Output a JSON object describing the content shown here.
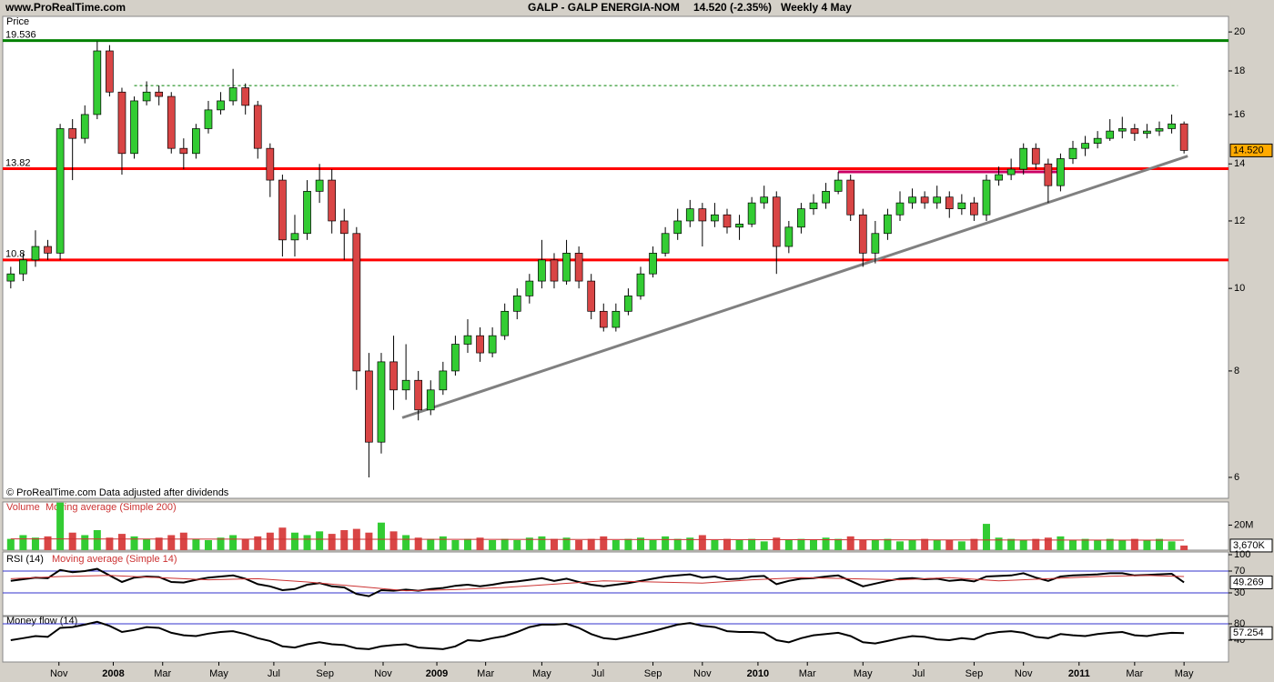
{
  "header": {
    "site": "www.ProRealTime.com",
    "symbol": "GALP - GALP ENERGIA-NOM",
    "quote": "14.520 (-2.35%)",
    "period": "Weekly  4 May"
  },
  "chart_data": [
    {
      "type": "candlestick",
      "title": "Price",
      "note": "© ProRealTime.com  Data adjusted after dividends",
      "log_scale": true,
      "up_color": "#33cc33",
      "down_color": "#d94545",
      "x": [
        0,
        2,
        4,
        6,
        8,
        10,
        12,
        14,
        16,
        18,
        20,
        22,
        24,
        26,
        28,
        30,
        32,
        34,
        36,
        38,
        40,
        42,
        44,
        46,
        48,
        50,
        52,
        54,
        56,
        58,
        60,
        62,
        64,
        66,
        68,
        70,
        72,
        74,
        76,
        78,
        80,
        82,
        84,
        86,
        88,
        90,
        92,
        94,
        96,
        98,
        100,
        102,
        104,
        106,
        108,
        110,
        112,
        114,
        116,
        118,
        120,
        122,
        124,
        126,
        128,
        130,
        132,
        134,
        136,
        138,
        140,
        142,
        144,
        146,
        148,
        150,
        152,
        154,
        156,
        158,
        160,
        162,
        164,
        166,
        168,
        170,
        172,
        174,
        176,
        178,
        180,
        182,
        184,
        186,
        188,
        190
      ],
      "open": [
        10.2,
        10.4,
        10.8,
        11.2,
        11.0,
        15.4,
        15.0,
        16.0,
        19.0,
        17.0,
        14.4,
        16.6,
        17.0,
        16.8,
        14.6,
        14.4,
        15.4,
        16.2,
        16.6,
        17.2,
        16.4,
        14.6,
        13.4,
        11.4,
        11.6,
        13.0,
        13.4,
        12.0,
        11.6,
        8.0,
        6.6,
        8.2,
        7.6,
        7.8,
        7.2,
        7.6,
        8.0,
        8.6,
        8.8,
        8.4,
        8.8,
        9.4,
        9.8,
        10.2,
        10.8,
        10.2,
        11.0,
        10.2,
        9.4,
        9.0,
        9.4,
        9.8,
        10.4,
        11.0,
        11.6,
        12.0,
        12.4,
        12.0,
        12.2,
        11.8,
        11.9,
        12.6,
        12.8,
        11.2,
        11.8,
        12.4,
        12.6,
        13.0,
        13.4,
        12.2,
        11.0,
        11.6,
        12.2,
        12.6,
        12.8,
        12.6,
        12.8,
        12.4,
        12.6,
        12.2,
        13.4,
        13.6,
        13.8,
        14.6,
        14.0,
        13.2,
        14.2,
        14.6,
        14.8,
        15.0,
        15.3,
        15.4,
        15.2,
        15.3,
        15.4,
        15.6
      ],
      "high": [
        10.6,
        11.0,
        11.7,
        11.4,
        15.6,
        15.8,
        16.4,
        19.5,
        19.3,
        17.2,
        16.8,
        17.5,
        17.3,
        17.0,
        15.0,
        15.6,
        16.6,
        17.0,
        18.1,
        17.4,
        16.6,
        14.8,
        13.6,
        12.2,
        13.4,
        14.0,
        13.8,
        12.4,
        11.8,
        8.4,
        8.4,
        8.8,
        8.6,
        8.0,
        7.8,
        8.2,
        8.8,
        9.2,
        9.0,
        9.0,
        9.6,
        10.0,
        10.4,
        11.4,
        11.0,
        11.4,
        11.2,
        10.4,
        9.6,
        9.6,
        10.0,
        10.6,
        11.2,
        11.8,
        12.4,
        12.7,
        12.6,
        12.6,
        12.4,
        12.2,
        12.8,
        13.2,
        13.0,
        12.0,
        12.6,
        12.9,
        13.3,
        13.7,
        13.6,
        12.4,
        12.0,
        12.4,
        13.0,
        13.1,
        13.0,
        13.2,
        13.0,
        12.9,
        12.8,
        13.6,
        13.9,
        14.2,
        14.8,
        14.8,
        14.2,
        14.4,
        14.9,
        15.1,
        15.3,
        15.8,
        15.9,
        15.6,
        15.6,
        15.7,
        16.0,
        15.7
      ],
      "low": [
        10.0,
        10.2,
        10.6,
        10.8,
        10.8,
        13.4,
        14.8,
        15.8,
        16.8,
        13.6,
        14.2,
        16.4,
        16.4,
        14.4,
        13.8,
        14.2,
        15.2,
        16.0,
        16.4,
        16.0,
        14.2,
        12.8,
        10.9,
        10.9,
        11.4,
        12.6,
        11.6,
        10.8,
        7.6,
        6.0,
        6.4,
        7.2,
        7.4,
        7.0,
        7.1,
        7.5,
        7.9,
        8.4,
        8.2,
        8.3,
        8.7,
        9.2,
        9.6,
        10.0,
        10.0,
        10.1,
        10.0,
        9.2,
        8.9,
        8.9,
        9.3,
        9.7,
        10.3,
        10.9,
        11.4,
        11.8,
        11.2,
        11.8,
        11.6,
        11.4,
        11.8,
        12.4,
        10.4,
        11.0,
        11.6,
        12.2,
        12.4,
        12.9,
        12.0,
        10.6,
        10.7,
        11.4,
        12.0,
        12.4,
        12.4,
        12.4,
        12.1,
        12.2,
        12.0,
        12.0,
        13.2,
        13.4,
        13.6,
        13.8,
        12.6,
        13.0,
        14.0,
        14.3,
        14.6,
        14.9,
        15.0,
        14.9,
        15.0,
        15.1,
        15.2,
        14.4
      ],
      "close": [
        10.4,
        10.8,
        11.2,
        11.0,
        15.4,
        15.0,
        16.0,
        19.0,
        17.0,
        14.4,
        16.6,
        17.0,
        16.8,
        14.6,
        14.4,
        15.4,
        16.2,
        16.6,
        17.2,
        16.4,
        14.6,
        13.4,
        11.4,
        11.6,
        13.0,
        13.4,
        12.0,
        11.6,
        8.0,
        6.6,
        8.2,
        7.6,
        7.8,
        7.2,
        7.6,
        8.0,
        8.6,
        8.8,
        8.4,
        8.8,
        9.4,
        9.8,
        10.2,
        10.8,
        10.2,
        11.0,
        10.2,
        9.4,
        9.0,
        9.4,
        9.8,
        10.4,
        11.0,
        11.6,
        12.0,
        12.4,
        12.0,
        12.2,
        11.8,
        11.9,
        12.6,
        12.8,
        11.2,
        11.8,
        12.4,
        12.6,
        13.0,
        13.4,
        12.2,
        11.0,
        11.6,
        12.2,
        12.6,
        12.8,
        12.6,
        12.8,
        12.4,
        12.6,
        12.2,
        13.4,
        13.6,
        13.8,
        14.6,
        14.0,
        13.2,
        14.2,
        14.6,
        14.8,
        15.0,
        15.3,
        15.4,
        15.2,
        15.3,
        15.4,
        15.6,
        14.52
      ],
      "xlim": [
        -1.3,
        197.2
      ],
      "xticks": [
        {
          "value": 7.8,
          "label": "Nov"
        },
        {
          "value": 16.6,
          "label": "2008"
        },
        {
          "value": 24.6,
          "label": "Mar"
        },
        {
          "value": 33.7,
          "label": "May"
        },
        {
          "value": 42.6,
          "label": "Jul"
        },
        {
          "value": 50.9,
          "label": "Sep"
        },
        {
          "value": 60.3,
          "label": "Nov"
        },
        {
          "value": 69,
          "label": "2009"
        },
        {
          "value": 76.9,
          "label": "Mar"
        },
        {
          "value": 86,
          "label": "May"
        },
        {
          "value": 95.1,
          "label": "Jul"
        },
        {
          "value": 104,
          "label": "Sep"
        },
        {
          "value": 112,
          "label": "Nov"
        },
        {
          "value": 121,
          "label": "2010"
        },
        {
          "value": 129,
          "label": "Mar"
        },
        {
          "value": 138,
          "label": "May"
        },
        {
          "value": 147,
          "label": "Jul"
        },
        {
          "value": 156,
          "label": "Sep"
        },
        {
          "value": 164,
          "label": "Nov"
        },
        {
          "value": 173,
          "label": "2011"
        },
        {
          "value": 182,
          "label": "Mar"
        },
        {
          "value": 190,
          "label": "May"
        }
      ],
      "ylim": [
        5.67,
        20.86
      ],
      "yticks": [
        6,
        8,
        10,
        12,
        14,
        16,
        18,
        20
      ],
      "levels": [
        {
          "value": 19.536,
          "color": "#008000"
        },
        {
          "value": 13.82,
          "color": "#ff0000"
        },
        {
          "value": 10.8,
          "color": "#ff0000"
        }
      ],
      "segments": [
        {
          "x": [
            20,
            189
          ],
          "y": [
            17.3,
            17.3
          ],
          "color": "#008000",
          "dashed": true
        },
        {
          "x": [
            63.4,
            190.6
          ],
          "y": [
            7.05,
            14.3
          ],
          "color": "#808080",
          "dashed": false
        },
        {
          "x": [
            134,
            170
          ],
          "y": [
            13.7,
            13.7
          ],
          "color": "#cc0066",
          "dashed": false
        }
      ],
      "tag": {
        "value": 14.52,
        "label": "14.520"
      },
      "tag_color": "#ffaa00"
    },
    {
      "type": "bar",
      "series": [
        {
          "name": "Volume",
          "values": [
            9000000,
            12000000,
            10000000,
            11000000,
            38000000,
            14000000,
            12000000,
            16000000,
            10000000,
            13000000,
            11000000,
            9000000,
            10000000,
            12000000,
            14000000,
            9000000,
            8000000,
            10000000,
            12000000,
            9000000,
            11000000,
            14000000,
            18000000,
            14000000,
            12000000,
            15000000,
            13000000,
            16000000,
            17000000,
            14000000,
            22000000,
            15000000,
            12000000,
            10000000,
            9000000,
            11000000,
            8000000,
            9000000,
            10000000,
            8000000,
            9000000,
            8000000,
            10000000,
            11000000,
            9000000,
            10000000,
            8000000,
            9000000,
            11000000,
            8000000,
            9000000,
            10000000,
            8000000,
            11000000,
            9000000,
            10000000,
            12000000,
            8000000,
            9000000,
            8000000,
            9000000,
            7000000,
            10000000,
            8000000,
            9000000,
            8000000,
            10000000,
            9000000,
            11000000,
            8000000,
            8000000,
            9000000,
            7000000,
            8000000,
            9000000,
            8000000,
            8000000,
            7000000,
            9000000,
            21000000,
            10000000,
            9000000,
            8000000,
            9000000,
            10000000,
            11000000,
            8000000,
            9000000,
            8000000,
            9000000,
            8000000,
            9000000,
            8000000,
            9000000,
            7000000,
            3670000
          ]
        },
        {
          "name": "Moving average (Simple 200)",
          "color": "#cc3333",
          "x": [
            0,
            190
          ],
          "values": [
            9000000,
            8000000
          ]
        }
      ],
      "ylim": [
        0,
        38500000
      ],
      "yticks": [
        {
          "value": 20000000,
          "label": "20M"
        }
      ],
      "tag": {
        "value": 3670000,
        "label": "3,670K"
      }
    },
    {
      "type": "line",
      "series": [
        {
          "name": "RSI (14)",
          "color": "#000000",
          "values": [
            52,
            55,
            58,
            57,
            72,
            68,
            70,
            74,
            62,
            50,
            58,
            60,
            59,
            50,
            49,
            54,
            58,
            60,
            62,
            56,
            46,
            42,
            35,
            37,
            45,
            48,
            42,
            40,
            28,
            24,
            35,
            34,
            36,
            34,
            37,
            39,
            43,
            45,
            42,
            45,
            49,
            51,
            54,
            57,
            52,
            56,
            50,
            45,
            42,
            45,
            48,
            52,
            56,
            60,
            62,
            64,
            58,
            60,
            55,
            56,
            60,
            61,
            46,
            52,
            56,
            57,
            60,
            62,
            52,
            42,
            47,
            52,
            56,
            57,
            55,
            56,
            52,
            54,
            51,
            60,
            61,
            62,
            66,
            58,
            52,
            60,
            62,
            63,
            64,
            66,
            66,
            62,
            63,
            64,
            65,
            49.269
          ]
        },
        {
          "name": "Moving average (Simple 14)",
          "color": "#cc3333",
          "x": [
            0,
            8,
            16,
            24,
            32,
            40,
            48,
            56,
            64,
            72,
            80,
            88,
            96,
            104,
            112,
            120,
            128,
            136,
            144,
            152,
            160,
            168,
            176,
            184,
            190
          ],
          "values": [
            56,
            60,
            62,
            58,
            54,
            56,
            50,
            42,
            34,
            36,
            40,
            46,
            52,
            50,
            48,
            54,
            58,
            56,
            54,
            58,
            52,
            56,
            60,
            62,
            60
          ]
        }
      ],
      "ylim": [
        -11.7,
        105
      ],
      "yticks": [
        30,
        70,
        100
      ],
      "hlines": [
        30,
        70
      ],
      "tag": 49.269
    },
    {
      "type": "line",
      "series": [
        {
          "name": "Money flow (14)",
          "color": "#000000",
          "values": [
            40,
            45,
            50,
            48,
            70,
            72,
            78,
            85,
            75,
            60,
            65,
            72,
            70,
            58,
            52,
            50,
            56,
            60,
            62,
            55,
            45,
            38,
            25,
            22,
            30,
            35,
            30,
            28,
            20,
            18,
            25,
            28,
            30,
            22,
            20,
            18,
            25,
            40,
            38,
            45,
            50,
            60,
            72,
            78,
            78,
            80,
            70,
            55,
            45,
            42,
            48,
            55,
            62,
            70,
            78,
            82,
            75,
            72,
            62,
            60,
            60,
            58,
            40,
            35,
            45,
            52,
            55,
            58,
            50,
            35,
            32,
            38,
            45,
            50,
            48,
            42,
            40,
            45,
            42,
            55,
            60,
            62,
            58,
            48,
            45,
            55,
            52,
            50,
            55,
            58,
            60,
            52,
            50,
            55,
            58,
            57.254
          ]
        }
      ],
      "ylim": [
        -13.3,
        97.8
      ],
      "yticks": [
        40,
        80
      ],
      "hlines": [
        80
      ],
      "tag": 57.254
    }
  ]
}
